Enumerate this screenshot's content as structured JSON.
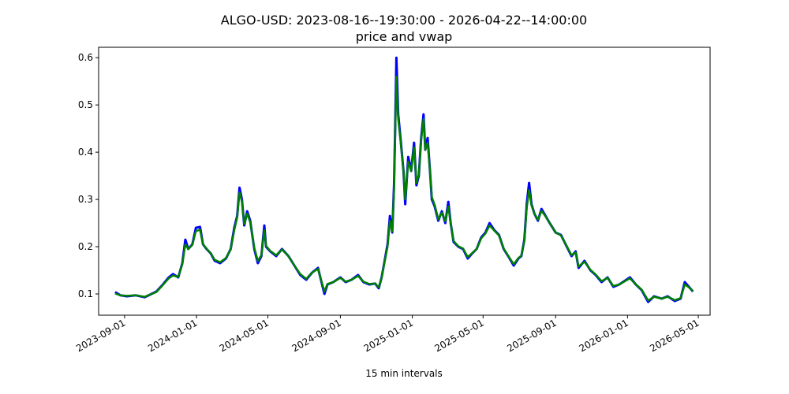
{
  "chart_data": {
    "type": "line",
    "title": "ALGO-USD: 2023-08-16--19:30:00 - 2026-04-22--14:00:00",
    "subtitle": "price and vwap",
    "xlabel": "15 min intervals",
    "ylabel": "",
    "ylim": [
      0.055,
      0.622
    ],
    "xlim": [
      "2023-07-19",
      "2026-05-21"
    ],
    "y_ticks": [
      "0.1",
      "0.2",
      "0.3",
      "0.4",
      "0.5",
      "0.6"
    ],
    "x_ticks": [
      "2023-09-01",
      "2024-01-01",
      "2024-05-01",
      "2024-09-01",
      "2025-01-01",
      "2025-05-01",
      "2025-09-01",
      "2026-01-01",
      "2026-05-01"
    ],
    "grid": false,
    "legend": "none",
    "series": [
      {
        "key": "price",
        "color": "#0000ff",
        "points": [
          [
            "2023-08-16",
            0.104
          ],
          [
            "2023-08-25",
            0.097
          ],
          [
            "2023-09-05",
            0.095
          ],
          [
            "2023-09-20",
            0.097
          ],
          [
            "2023-10-05",
            0.093
          ],
          [
            "2023-10-15",
            0.099
          ],
          [
            "2023-10-25",
            0.105
          ],
          [
            "2023-11-05",
            0.12
          ],
          [
            "2023-11-15",
            0.135
          ],
          [
            "2023-11-22",
            0.142
          ],
          [
            "2023-12-01",
            0.135
          ],
          [
            "2023-12-08",
            0.165
          ],
          [
            "2023-12-13",
            0.215
          ],
          [
            "2023-12-18",
            0.195
          ],
          [
            "2023-12-25",
            0.205
          ],
          [
            "2023-12-31",
            0.24
          ],
          [
            "2024-01-07",
            0.242
          ],
          [
            "2024-01-12",
            0.205
          ],
          [
            "2024-01-18",
            0.195
          ],
          [
            "2024-01-25",
            0.186
          ],
          [
            "2024-02-01",
            0.17
          ],
          [
            "2024-02-10",
            0.165
          ],
          [
            "2024-02-20",
            0.175
          ],
          [
            "2024-02-28",
            0.195
          ],
          [
            "2024-03-05",
            0.24
          ],
          [
            "2024-03-10",
            0.265
          ],
          [
            "2024-03-14",
            0.325
          ],
          [
            "2024-03-18",
            0.3
          ],
          [
            "2024-03-22",
            0.245
          ],
          [
            "2024-03-27",
            0.275
          ],
          [
            "2024-04-01",
            0.255
          ],
          [
            "2024-04-08",
            0.195
          ],
          [
            "2024-04-14",
            0.165
          ],
          [
            "2024-04-20",
            0.18
          ],
          [
            "2024-04-25",
            0.245
          ],
          [
            "2024-04-28",
            0.2
          ],
          [
            "2024-05-05",
            0.19
          ],
          [
            "2024-05-15",
            0.18
          ],
          [
            "2024-05-25",
            0.195
          ],
          [
            "2024-06-05",
            0.18
          ],
          [
            "2024-06-15",
            0.16
          ],
          [
            "2024-06-25",
            0.14
          ],
          [
            "2024-07-05",
            0.13
          ],
          [
            "2024-07-15",
            0.145
          ],
          [
            "2024-07-25",
            0.155
          ],
          [
            "2024-08-05",
            0.1
          ],
          [
            "2024-08-10",
            0.12
          ],
          [
            "2024-08-20",
            0.125
          ],
          [
            "2024-09-01",
            0.135
          ],
          [
            "2024-09-10",
            0.125
          ],
          [
            "2024-09-20",
            0.13
          ],
          [
            "2024-10-01",
            0.14
          ],
          [
            "2024-10-10",
            0.125
          ],
          [
            "2024-10-20",
            0.12
          ],
          [
            "2024-10-30",
            0.122
          ],
          [
            "2024-11-05",
            0.112
          ],
          [
            "2024-11-10",
            0.135
          ],
          [
            "2024-11-15",
            0.17
          ],
          [
            "2024-11-20",
            0.205
          ],
          [
            "2024-11-24",
            0.265
          ],
          [
            "2024-11-28",
            0.23
          ],
          [
            "2024-12-01",
            0.33
          ],
          [
            "2024-12-03",
            0.455
          ],
          [
            "2024-12-05",
            0.6
          ],
          [
            "2024-12-08",
            0.48
          ],
          [
            "2024-12-12",
            0.43
          ],
          [
            "2024-12-17",
            0.36
          ],
          [
            "2024-12-20",
            0.29
          ],
          [
            "2024-12-25",
            0.39
          ],
          [
            "2024-12-30",
            0.36
          ],
          [
            "2025-01-04",
            0.42
          ],
          [
            "2025-01-08",
            0.33
          ],
          [
            "2025-01-12",
            0.35
          ],
          [
            "2025-01-16",
            0.43
          ],
          [
            "2025-01-20",
            0.48
          ],
          [
            "2025-01-23",
            0.405
          ],
          [
            "2025-01-27",
            0.43
          ],
          [
            "2025-01-31",
            0.36
          ],
          [
            "2025-02-03",
            0.3
          ],
          [
            "2025-02-08",
            0.285
          ],
          [
            "2025-02-14",
            0.255
          ],
          [
            "2025-02-20",
            0.275
          ],
          [
            "2025-02-26",
            0.25
          ],
          [
            "2025-03-03",
            0.295
          ],
          [
            "2025-03-07",
            0.25
          ],
          [
            "2025-03-12",
            0.21
          ],
          [
            "2025-03-20",
            0.2
          ],
          [
            "2025-03-28",
            0.195
          ],
          [
            "2025-04-05",
            0.175
          ],
          [
            "2025-04-12",
            0.185
          ],
          [
            "2025-04-20",
            0.195
          ],
          [
            "2025-04-28",
            0.22
          ],
          [
            "2025-05-05",
            0.23
          ],
          [
            "2025-05-12",
            0.25
          ],
          [
            "2025-05-20",
            0.235
          ],
          [
            "2025-05-28",
            0.225
          ],
          [
            "2025-06-05",
            0.195
          ],
          [
            "2025-06-15",
            0.175
          ],
          [
            "2025-06-22",
            0.16
          ],
          [
            "2025-06-30",
            0.175
          ],
          [
            "2025-07-05",
            0.18
          ],
          [
            "2025-07-10",
            0.215
          ],
          [
            "2025-07-14",
            0.29
          ],
          [
            "2025-07-18",
            0.335
          ],
          [
            "2025-07-22",
            0.29
          ],
          [
            "2025-07-27",
            0.27
          ],
          [
            "2025-08-02",
            0.255
          ],
          [
            "2025-08-08",
            0.28
          ],
          [
            "2025-08-15",
            0.265
          ],
          [
            "2025-08-22",
            0.25
          ],
          [
            "2025-09-01",
            0.23
          ],
          [
            "2025-09-10",
            0.225
          ],
          [
            "2025-09-20",
            0.2
          ],
          [
            "2025-09-28",
            0.18
          ],
          [
            "2025-10-05",
            0.19
          ],
          [
            "2025-10-10",
            0.155
          ],
          [
            "2025-10-20",
            0.17
          ],
          [
            "2025-10-30",
            0.15
          ],
          [
            "2025-11-08",
            0.14
          ],
          [
            "2025-11-18",
            0.125
          ],
          [
            "2025-11-28",
            0.135
          ],
          [
            "2025-12-08",
            0.115
          ],
          [
            "2025-12-18",
            0.12
          ],
          [
            "2026-01-05",
            0.135
          ],
          [
            "2026-01-15",
            0.12
          ],
          [
            "2026-01-25",
            0.108
          ],
          [
            "2026-02-05",
            0.083
          ],
          [
            "2026-02-15",
            0.095
          ],
          [
            "2026-02-28",
            0.09
          ],
          [
            "2026-03-10",
            0.095
          ],
          [
            "2026-03-22",
            0.085
          ],
          [
            "2026-04-01",
            0.09
          ],
          [
            "2026-04-08",
            0.125
          ],
          [
            "2026-04-15",
            0.115
          ],
          [
            "2026-04-22",
            0.105
          ]
        ]
      },
      {
        "key": "vwap",
        "color": "#008000",
        "points": [
          [
            "2023-08-16",
            0.101
          ],
          [
            "2023-08-25",
            0.097
          ],
          [
            "2023-09-05",
            0.096
          ],
          [
            "2023-09-20",
            0.097
          ],
          [
            "2023-10-05",
            0.094
          ],
          [
            "2023-10-15",
            0.099
          ],
          [
            "2023-10-25",
            0.104
          ],
          [
            "2023-11-05",
            0.119
          ],
          [
            "2023-11-15",
            0.133
          ],
          [
            "2023-11-22",
            0.139
          ],
          [
            "2023-12-01",
            0.136
          ],
          [
            "2023-12-08",
            0.163
          ],
          [
            "2023-12-13",
            0.205
          ],
          [
            "2023-12-18",
            0.195
          ],
          [
            "2023-12-25",
            0.204
          ],
          [
            "2023-12-31",
            0.233
          ],
          [
            "2024-01-07",
            0.236
          ],
          [
            "2024-01-12",
            0.205
          ],
          [
            "2024-01-18",
            0.196
          ],
          [
            "2024-01-25",
            0.186
          ],
          [
            "2024-02-01",
            0.172
          ],
          [
            "2024-02-10",
            0.167
          ],
          [
            "2024-02-20",
            0.176
          ],
          [
            "2024-02-28",
            0.194
          ],
          [
            "2024-03-05",
            0.235
          ],
          [
            "2024-03-10",
            0.262
          ],
          [
            "2024-03-14",
            0.315
          ],
          [
            "2024-03-18",
            0.296
          ],
          [
            "2024-03-22",
            0.248
          ],
          [
            "2024-03-27",
            0.27
          ],
          [
            "2024-04-01",
            0.252
          ],
          [
            "2024-04-08",
            0.198
          ],
          [
            "2024-04-14",
            0.17
          ],
          [
            "2024-04-20",
            0.182
          ],
          [
            "2024-04-25",
            0.235
          ],
          [
            "2024-04-28",
            0.202
          ],
          [
            "2024-05-05",
            0.191
          ],
          [
            "2024-05-15",
            0.182
          ],
          [
            "2024-05-25",
            0.194
          ],
          [
            "2024-06-05",
            0.18
          ],
          [
            "2024-06-15",
            0.16
          ],
          [
            "2024-06-25",
            0.142
          ],
          [
            "2024-07-05",
            0.132
          ],
          [
            "2024-07-15",
            0.145
          ],
          [
            "2024-07-25",
            0.153
          ],
          [
            "2024-08-05",
            0.105
          ],
          [
            "2024-08-10",
            0.121
          ],
          [
            "2024-08-20",
            0.125
          ],
          [
            "2024-09-01",
            0.134
          ],
          [
            "2024-09-10",
            0.126
          ],
          [
            "2024-09-20",
            0.13
          ],
          [
            "2024-10-01",
            0.138
          ],
          [
            "2024-10-10",
            0.126
          ],
          [
            "2024-10-20",
            0.121
          ],
          [
            "2024-10-30",
            0.122
          ],
          [
            "2024-11-05",
            0.114
          ],
          [
            "2024-11-10",
            0.134
          ],
          [
            "2024-11-15",
            0.168
          ],
          [
            "2024-11-20",
            0.2
          ],
          [
            "2024-11-24",
            0.255
          ],
          [
            "2024-11-28",
            0.232
          ],
          [
            "2024-12-01",
            0.32
          ],
          [
            "2024-12-03",
            0.44
          ],
          [
            "2024-12-05",
            0.56
          ],
          [
            "2024-12-08",
            0.47
          ],
          [
            "2024-12-12",
            0.425
          ],
          [
            "2024-12-17",
            0.36
          ],
          [
            "2024-12-20",
            0.3
          ],
          [
            "2024-12-25",
            0.38
          ],
          [
            "2024-12-30",
            0.36
          ],
          [
            "2025-01-04",
            0.41
          ],
          [
            "2025-01-08",
            0.335
          ],
          [
            "2025-01-12",
            0.352
          ],
          [
            "2025-01-16",
            0.425
          ],
          [
            "2025-01-20",
            0.47
          ],
          [
            "2025-01-23",
            0.405
          ],
          [
            "2025-01-27",
            0.42
          ],
          [
            "2025-01-31",
            0.36
          ],
          [
            "2025-02-03",
            0.305
          ],
          [
            "2025-02-08",
            0.288
          ],
          [
            "2025-02-14",
            0.258
          ],
          [
            "2025-02-20",
            0.272
          ],
          [
            "2025-02-26",
            0.254
          ],
          [
            "2025-03-03",
            0.285
          ],
          [
            "2025-03-07",
            0.25
          ],
          [
            "2025-03-12",
            0.212
          ],
          [
            "2025-03-20",
            0.201
          ],
          [
            "2025-03-28",
            0.196
          ],
          [
            "2025-04-05",
            0.178
          ],
          [
            "2025-04-12",
            0.186
          ],
          [
            "2025-04-20",
            0.195
          ],
          [
            "2025-04-28",
            0.218
          ],
          [
            "2025-05-05",
            0.228
          ],
          [
            "2025-05-12",
            0.245
          ],
          [
            "2025-05-20",
            0.234
          ],
          [
            "2025-05-28",
            0.224
          ],
          [
            "2025-06-05",
            0.196
          ],
          [
            "2025-06-15",
            0.176
          ],
          [
            "2025-06-22",
            0.163
          ],
          [
            "2025-06-30",
            0.176
          ],
          [
            "2025-07-05",
            0.181
          ],
          [
            "2025-07-10",
            0.212
          ],
          [
            "2025-07-14",
            0.282
          ],
          [
            "2025-07-18",
            0.32
          ],
          [
            "2025-07-22",
            0.288
          ],
          [
            "2025-07-27",
            0.27
          ],
          [
            "2025-08-02",
            0.257
          ],
          [
            "2025-08-08",
            0.276
          ],
          [
            "2025-08-15",
            0.264
          ],
          [
            "2025-08-22",
            0.25
          ],
          [
            "2025-09-01",
            0.23
          ],
          [
            "2025-09-10",
            0.224
          ],
          [
            "2025-09-20",
            0.201
          ],
          [
            "2025-09-28",
            0.182
          ],
          [
            "2025-10-05",
            0.188
          ],
          [
            "2025-10-10",
            0.158
          ],
          [
            "2025-10-20",
            0.168
          ],
          [
            "2025-10-30",
            0.151
          ],
          [
            "2025-11-08",
            0.141
          ],
          [
            "2025-11-18",
            0.127
          ],
          [
            "2025-11-28",
            0.134
          ],
          [
            "2025-12-08",
            0.117
          ],
          [
            "2025-12-18",
            0.12
          ],
          [
            "2026-01-05",
            0.133
          ],
          [
            "2026-01-15",
            0.12
          ],
          [
            "2026-01-25",
            0.109
          ],
          [
            "2026-02-05",
            0.086
          ],
          [
            "2026-02-15",
            0.094
          ],
          [
            "2026-02-28",
            0.09
          ],
          [
            "2026-03-10",
            0.094
          ],
          [
            "2026-03-22",
            0.087
          ],
          [
            "2026-04-01",
            0.091
          ],
          [
            "2026-04-08",
            0.12
          ],
          [
            "2026-04-15",
            0.114
          ],
          [
            "2026-04-22",
            0.106
          ]
        ]
      }
    ]
  }
}
